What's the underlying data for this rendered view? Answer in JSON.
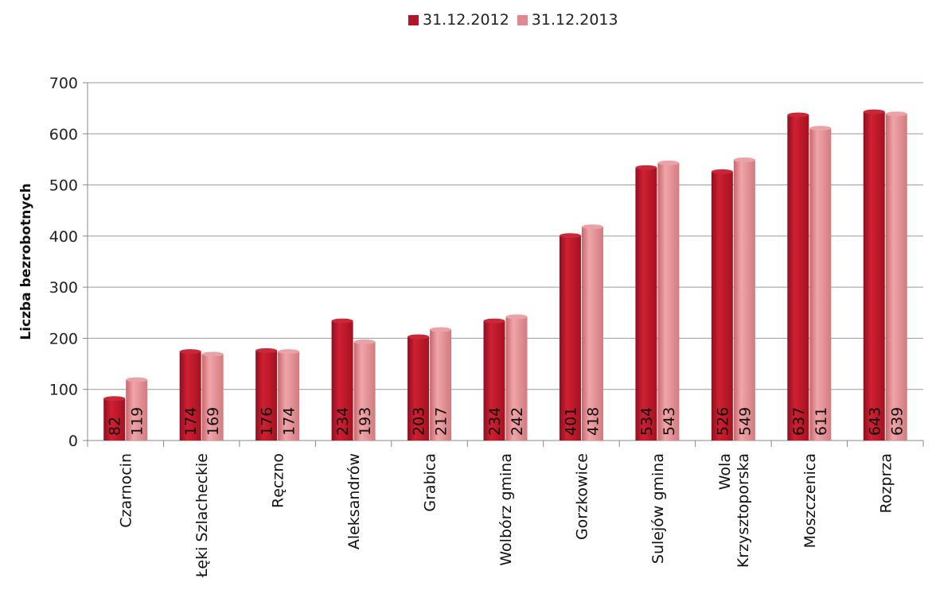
{
  "chart_data": {
    "type": "bar",
    "title": "",
    "xlabel": "",
    "ylabel": "Liczba bezrobotnych",
    "ylim": [
      0,
      700
    ],
    "yticks": [
      0,
      100,
      200,
      300,
      400,
      500,
      600,
      700
    ],
    "grid": true,
    "legend_position": "top",
    "categories": [
      [
        "Czarnocin"
      ],
      [
        "Łęki Szlacheckie"
      ],
      [
        "Ręczno"
      ],
      [
        "Aleksandrów"
      ],
      [
        "Grabica"
      ],
      [
        "Wolbórz gmina"
      ],
      [
        "Gorzkowice"
      ],
      [
        "Sulejów gmina"
      ],
      [
        "Wola",
        "Krzysztoporska"
      ],
      [
        "Moszczenica"
      ],
      [
        "Rozprza"
      ]
    ],
    "series": [
      {
        "name": "31.12.2012",
        "color": "#c0182c",
        "values": [
          82,
          174,
          176,
          234,
          203,
          234,
          401,
          534,
          526,
          637,
          643
        ]
      },
      {
        "name": "31.12.2013",
        "color": "#e38a8f",
        "values": [
          119,
          169,
          174,
          193,
          217,
          242,
          418,
          543,
          549,
          611,
          639
        ]
      }
    ]
  }
}
